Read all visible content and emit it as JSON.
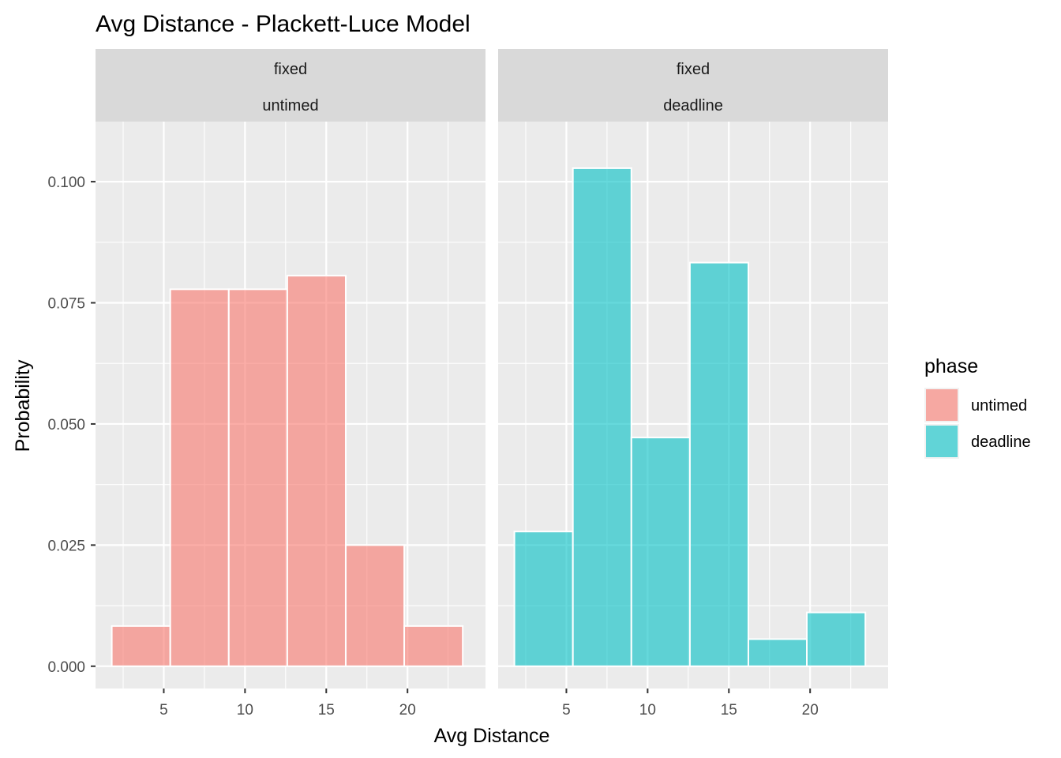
{
  "chart_data": {
    "type": "bar",
    "title": "Avg Distance - Plackett-Luce Model",
    "xlabel": "Avg Distance",
    "ylabel": "Probability",
    "xlim": [
      0.8,
      24.8
    ],
    "ylim": [
      -0.0046,
      0.1124
    ],
    "x_ticks": [
      "5",
      "10",
      "15",
      "20"
    ],
    "x_tick_values": [
      5,
      10,
      15,
      20
    ],
    "y_ticks": [
      "0.000",
      "0.025",
      "0.050",
      "0.075",
      "0.100"
    ],
    "y_tick_values": [
      0,
      0.025,
      0.05,
      0.075,
      0.1
    ],
    "grid": true,
    "legend": {
      "title": "phase",
      "position": "right",
      "entries": [
        {
          "label": "untimed",
          "color": "#F8766D"
        },
        {
          "label": "deadline",
          "color": "#00BFC4"
        }
      ]
    },
    "panels": [
      {
        "strip_top": "fixed",
        "strip_bottom": "untimed",
        "series": "untimed",
        "color": "#F8766D",
        "bins": [
          {
            "x0": 1.8,
            "x1": 5.4,
            "value": 0.0083
          },
          {
            "x0": 5.4,
            "x1": 9.0,
            "value": 0.0778
          },
          {
            "x0": 9.0,
            "x1": 12.6,
            "value": 0.0778
          },
          {
            "x0": 12.6,
            "x1": 16.2,
            "value": 0.0806
          },
          {
            "x0": 16.2,
            "x1": 19.8,
            "value": 0.025
          },
          {
            "x0": 19.8,
            "x1": 23.4,
            "value": 0.0083
          }
        ]
      },
      {
        "strip_top": "fixed",
        "strip_bottom": "deadline",
        "series": "deadline",
        "color": "#00BFC4",
        "bins": [
          {
            "x0": 1.8,
            "x1": 5.4,
            "value": 0.0278
          },
          {
            "x0": 5.4,
            "x1": 9.0,
            "value": 0.1028
          },
          {
            "x0": 9.0,
            "x1": 12.6,
            "value": 0.0472
          },
          {
            "x0": 12.6,
            "x1": 16.2,
            "value": 0.0833
          },
          {
            "x0": 16.2,
            "x1": 19.8,
            "value": 0.0056
          },
          {
            "x0": 19.8,
            "x1": 23.4,
            "value": 0.0111
          }
        ]
      }
    ]
  }
}
